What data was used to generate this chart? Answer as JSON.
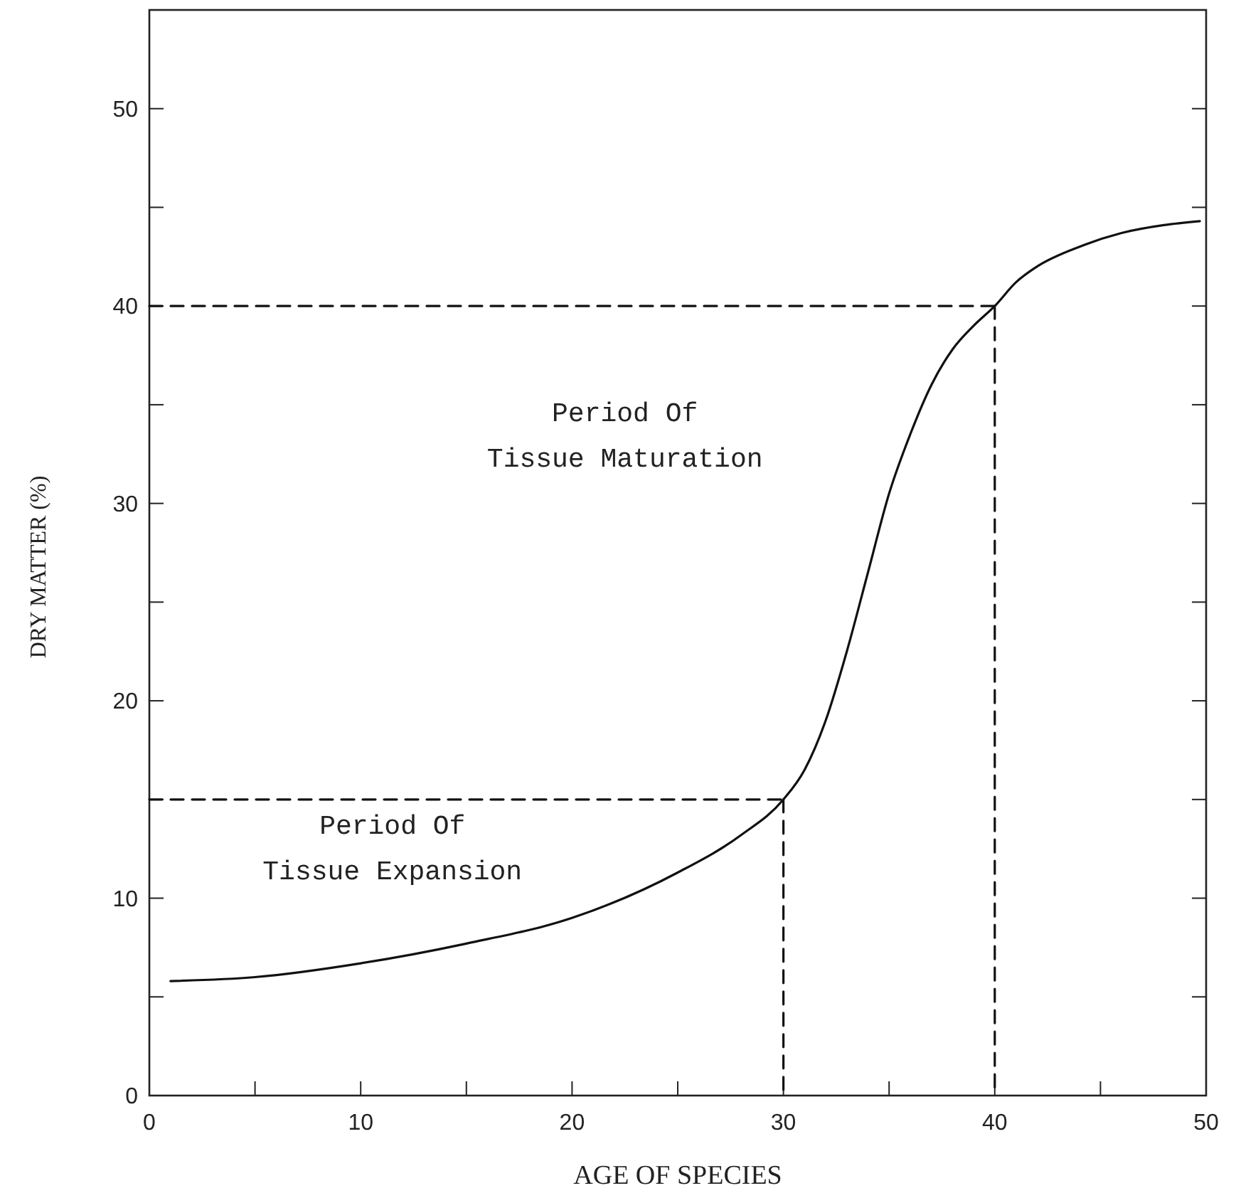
{
  "chart_data": {
    "type": "line",
    "xlabel": "AGE OF SPECIES",
    "ylabel": "DRY MATTER (%)",
    "xlim": [
      0,
      50
    ],
    "ylim": [
      0,
      55
    ],
    "xticks": [
      0,
      {
        "value": 5,
        "label": null
      },
      10,
      {
        "value": 15,
        "label": null
      },
      20,
      {
        "value": 25,
        "label": null
      },
      30,
      {
        "value": 35,
        "label": null
      },
      40,
      {
        "value": 45,
        "label": null
      },
      50
    ],
    "yticks": [
      0,
      {
        "value": 5,
        "label": null
      },
      10,
      {
        "value": 15,
        "label": null
      },
      20,
      {
        "value": 25,
        "label": null
      },
      30,
      {
        "value": 35,
        "label": null
      },
      40,
      {
        "value": 45,
        "label": null
      },
      50
    ],
    "series": [
      {
        "color": "#111111",
        "line_style": "solid",
        "x": [
          1,
          5,
          10,
          15,
          20,
          25,
          28,
          30,
          31,
          32,
          33,
          34,
          35,
          36,
          37,
          38,
          39,
          40,
          41,
          42,
          44,
          46,
          48,
          49.7
        ],
        "values": [
          5.8,
          6.0,
          6.7,
          7.7,
          9.0,
          11.3,
          13.2,
          15,
          16.5,
          19,
          22.5,
          26.5,
          30.5,
          33.5,
          36,
          37.8,
          39,
          40,
          41.2,
          42,
          43,
          43.7,
          44.1,
          44.3
        ]
      },
      {
        "color": "#111111",
        "line_style": "dashed",
        "x": [
          0,
          30
        ],
        "values": [
          15,
          15
        ]
      },
      {
        "color": "#111111",
        "line_style": "dashed",
        "x": [
          30,
          30
        ],
        "values": [
          15,
          0
        ]
      },
      {
        "color": "#111111",
        "line_style": "dashed",
        "x": [
          0,
          40
        ],
        "values": [
          40,
          40
        ]
      },
      {
        "color": "#111111",
        "line_style": "dashed",
        "x": [
          40,
          40
        ],
        "values": [
          40,
          0
        ]
      }
    ],
    "annotations": [
      "Period Of\nTissue Expansion",
      "Period Of\nTissue Maturation"
    ],
    "grid": false
  }
}
